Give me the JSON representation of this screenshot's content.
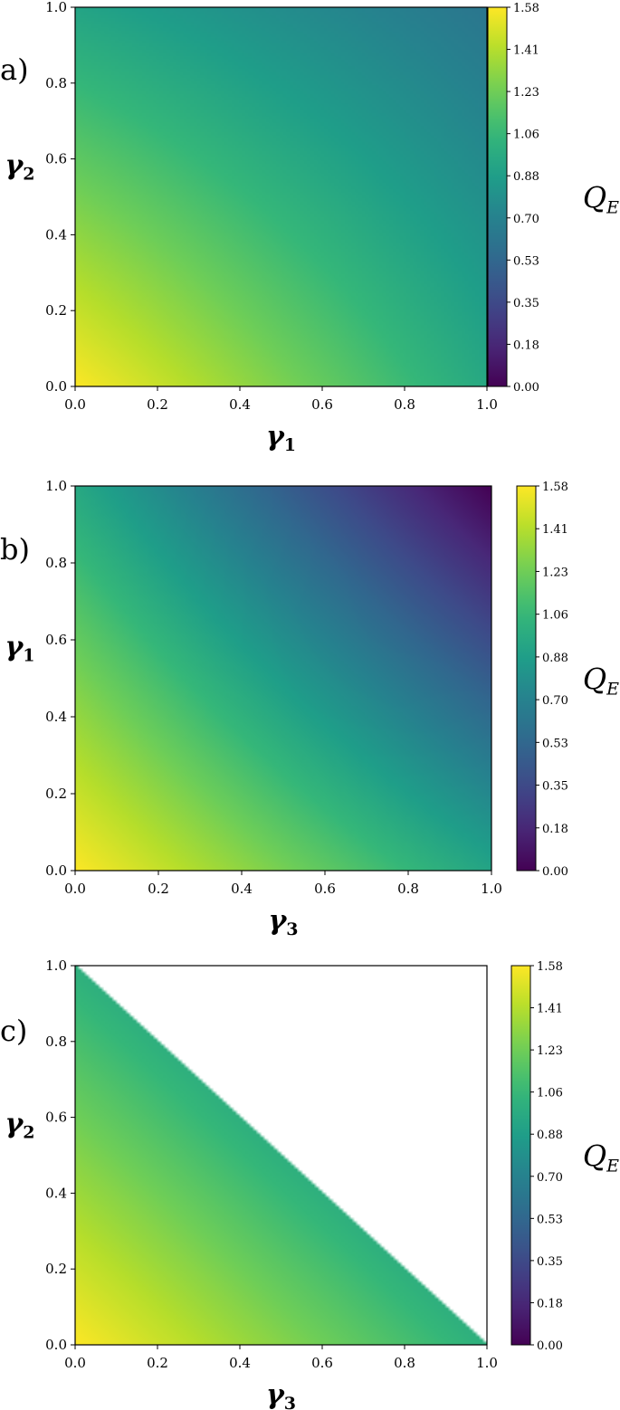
{
  "chart_data": [
    {
      "type": "heatmap",
      "panel_label": "a)",
      "xlabel": {
        "symbol": "γ",
        "sub": "1"
      },
      "ylabel": {
        "symbol": "γ",
        "sub": "2"
      },
      "x_range": [
        0,
        1
      ],
      "y_range": [
        0,
        1
      ],
      "x_ticks": [
        "0.0",
        "0.2",
        "0.4",
        "0.6",
        "0.8",
        "1.0"
      ],
      "y_ticks": [
        "0.0",
        "0.2",
        "0.4",
        "0.6",
        "0.8",
        "1.0"
      ],
      "domain": "square",
      "values_at_corners": {
        "x0_y0": 1.58,
        "x1_y0": 0.95,
        "x0_y1": 0.92,
        "x1_y1": 0.62
      },
      "colorbar": {
        "label": {
          "symbol": "Q",
          "sub": "E"
        },
        "ticks": [
          "0.00",
          "0.18",
          "0.35",
          "0.53",
          "0.70",
          "0.88",
          "1.06",
          "1.23",
          "1.41",
          "1.58"
        ],
        "range": [
          0,
          1.58
        ]
      }
    },
    {
      "type": "heatmap",
      "panel_label": "b)",
      "xlabel": {
        "symbol": "γ",
        "sub": "3"
      },
      "ylabel": {
        "symbol": "γ",
        "sub": "1"
      },
      "x_range": [
        0,
        1
      ],
      "y_range": [
        0,
        1
      ],
      "x_ticks": [
        "0.0",
        "0.2",
        "0.4",
        "0.6",
        "0.8",
        "1.0"
      ],
      "y_ticks": [
        "0.0",
        "0.2",
        "0.4",
        "0.6",
        "0.8",
        "1.0"
      ],
      "domain": "square",
      "values_at_corners": {
        "x0_y0": 1.58,
        "x1_y0": 0.92,
        "x0_y1": 0.95,
        "x1_y1": 0.0
      },
      "colorbar": {
        "label": {
          "symbol": "Q",
          "sub": "E"
        },
        "ticks": [
          "0.00",
          "0.18",
          "0.35",
          "0.53",
          "0.70",
          "0.88",
          "1.06",
          "1.23",
          "1.41",
          "1.58"
        ],
        "range": [
          0,
          1.58
        ]
      }
    },
    {
      "type": "heatmap",
      "panel_label": "c)",
      "xlabel": {
        "symbol": "γ",
        "sub": "3"
      },
      "ylabel": {
        "symbol": "γ",
        "sub": "2"
      },
      "x_range": [
        0,
        1
      ],
      "y_range": [
        0,
        1
      ],
      "x_ticks": [
        "0.0",
        "0.2",
        "0.4",
        "0.6",
        "0.8",
        "1.0"
      ],
      "y_ticks": [
        "0.0",
        "0.2",
        "0.4",
        "0.6",
        "0.8",
        "1.0"
      ],
      "domain": "triangle x+y<=1",
      "values_at_corners": {
        "x0_y0": 1.58,
        "x1_y0": 1.0,
        "x0_y1": 1.0
      },
      "colorbar": {
        "label": {
          "symbol": "Q",
          "sub": "E"
        },
        "ticks": [
          "0.00",
          "0.18",
          "0.35",
          "0.53",
          "0.70",
          "0.88",
          "1.06",
          "1.23",
          "1.41",
          "1.58"
        ],
        "range": [
          0,
          1.58
        ]
      }
    }
  ]
}
